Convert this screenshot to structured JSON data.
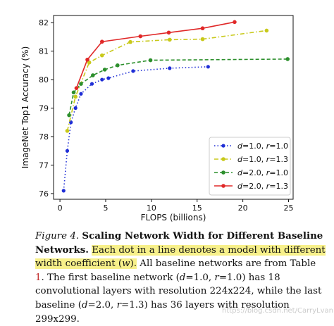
{
  "chart_data": {
    "type": "line",
    "xlabel": "FLOPS (billions)",
    "ylabel": "ImageNet Top1 Accuracy (%)",
    "xlim": [
      -0.7,
      25.5
    ],
    "ylim": [
      75.8,
      82.25
    ],
    "xticks": [
      0,
      5,
      10,
      15,
      20,
      25
    ],
    "yticks": [
      76,
      77,
      78,
      79,
      80,
      81,
      82
    ],
    "grid": false,
    "legend_position": "lower-right",
    "series": [
      {
        "name_parts": [
          "d",
          "=1.0, ",
          "r",
          "=1.0"
        ],
        "color": "#1f2ed6",
        "dash": "1.5 3",
        "marker_size": 2.6,
        "x": [
          0.4,
          0.8,
          1.2,
          1.7,
          2.3,
          3.5,
          4.6,
          5.3,
          8.0,
          12.0,
          16.2
        ],
        "y": [
          76.1,
          77.5,
          78.5,
          79.0,
          79.5,
          79.85,
          80.0,
          80.05,
          80.3,
          80.4,
          80.45
        ]
      },
      {
        "name_parts": [
          "d",
          "=1.0, ",
          "r",
          "=1.3"
        ],
        "color": "#c8c91a",
        "dash": "6 3 1.5 3",
        "marker_size": 2.8,
        "x": [
          0.8,
          1.7,
          3.2,
          4.6,
          7.7,
          12.0,
          15.6,
          22.6
        ],
        "y": [
          78.2,
          79.4,
          80.6,
          80.85,
          81.32,
          81.4,
          81.42,
          81.72
        ]
      },
      {
        "name_parts": [
          "d",
          "=2.0, ",
          "r",
          "=1.0"
        ],
        "color": "#2c8f2c",
        "dash": "5 3",
        "marker_size": 2.8,
        "x": [
          1.0,
          1.5,
          2.3,
          3.6,
          4.9,
          6.3,
          9.9,
          24.9
        ],
        "y": [
          78.75,
          79.55,
          79.85,
          80.15,
          80.35,
          80.5,
          80.68,
          80.72
        ]
      },
      {
        "name_parts": [
          "d",
          "=2.0, ",
          "r",
          "=1.3"
        ],
        "color": "#e02828",
        "dash": "",
        "marker_size": 2.8,
        "x": [
          1.8,
          3.0,
          4.6,
          8.8,
          11.9,
          15.6,
          19.1
        ],
        "y": [
          79.7,
          80.7,
          81.33,
          81.52,
          81.65,
          81.8,
          82.02
        ]
      }
    ]
  },
  "caption": {
    "fig_label": "Figure 4.",
    "title": "Scaling Network Width for Different Baseline Net­works",
    "title_end": ".",
    "highlight_text": "Each dot in a line denotes a model with different width coefficient (",
    "highlight_var": "w",
    "highlight_end": ").",
    "text_1": "All baseline networks are from Table",
    "table_ref": "1",
    "text_2": ". The first baseline network (",
    "v1": "d",
    "t3": "=1.0, ",
    "v2": "r",
    "t4": "=1.0) has 18 convolutional layers with resolution 224x224, while the last baseline (",
    "v3": "d",
    "t5": "=2.0, ",
    "v4": "r",
    "t6": "=1.3) has 36 layers with resolution 299x299."
  },
  "watermark": "https://blog.csdn.net/CarryLvan",
  "colors": {
    "table_ref": "#c22a2a",
    "highlight": "#f7f08a"
  }
}
